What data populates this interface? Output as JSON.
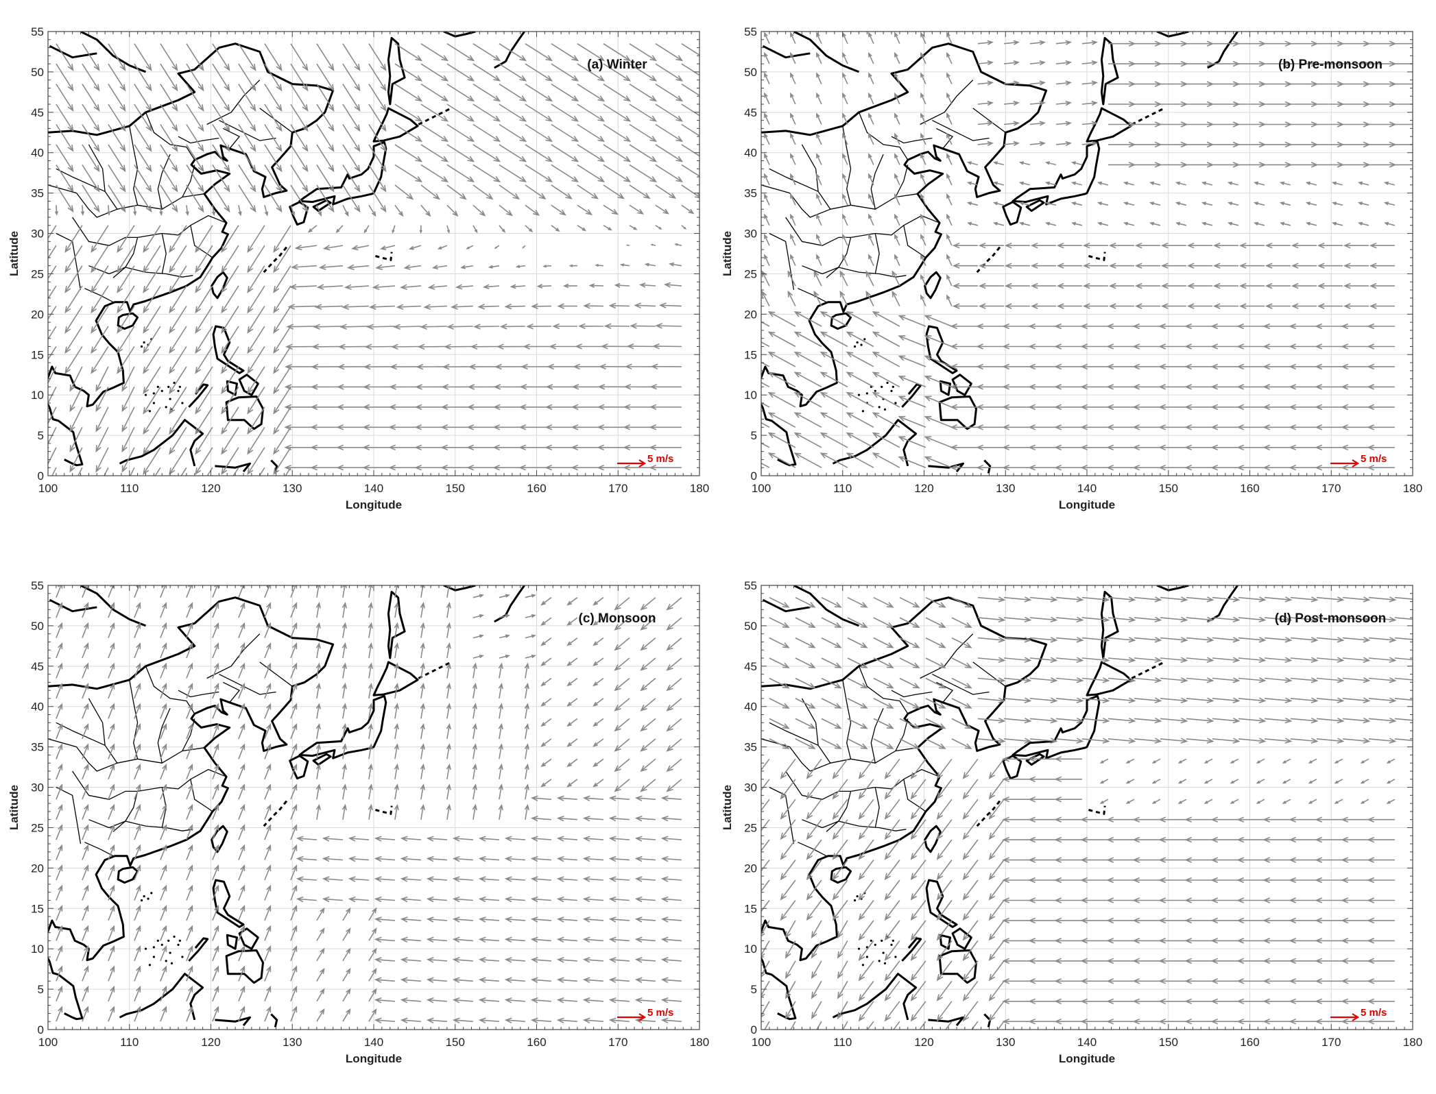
{
  "figure": {
    "panels": [
      {
        "id": "a",
        "title": "(a) Winter",
        "season": "winter",
        "xlabel": "Longitude",
        "ylabel": "Latitude",
        "xticks": [
          "100",
          "110",
          "120",
          "130",
          "140",
          "150",
          "160",
          "170",
          "180"
        ],
        "yticks": [
          "0",
          "5",
          "10",
          "15",
          "20",
          "25",
          "30",
          "35",
          "40",
          "45",
          "50",
          "55"
        ],
        "reference_vector": "5 m/s"
      },
      {
        "id": "b",
        "title": "(b) Pre-monsoon",
        "season": "premonsoon",
        "xlabel": "Longitude",
        "ylabel": "Latitude",
        "xticks": [
          "100",
          "110",
          "120",
          "130",
          "140",
          "150",
          "160",
          "170",
          "180"
        ],
        "yticks": [
          "0",
          "5",
          "10",
          "15",
          "20",
          "25",
          "30",
          "35",
          "40",
          "45",
          "50",
          "55"
        ],
        "reference_vector": "5 m/s"
      },
      {
        "id": "c",
        "title": "(c) Monsoon",
        "season": "monsoon",
        "xlabel": "Longitude",
        "ylabel": "Latitude",
        "xticks": [
          "100",
          "110",
          "120",
          "130",
          "140",
          "150",
          "160",
          "170",
          "180"
        ],
        "yticks": [
          "0",
          "5",
          "10",
          "15",
          "20",
          "25",
          "30",
          "35",
          "40",
          "45",
          "50",
          "55"
        ],
        "reference_vector": "5 m/s"
      },
      {
        "id": "d",
        "title": "(d) Post-monsoon",
        "season": "postmonsoon",
        "xlabel": "Longitude",
        "ylabel": "Latitude",
        "xticks": [
          "100",
          "110",
          "120",
          "130",
          "140",
          "150",
          "160",
          "170",
          "180"
        ],
        "yticks": [
          "0",
          "5",
          "10",
          "15",
          "20",
          "25",
          "30",
          "35",
          "40",
          "45",
          "50",
          "55"
        ],
        "reference_vector": "5 m/s"
      }
    ],
    "map_extent": {
      "lon": [
        100,
        180
      ],
      "lat": [
        0,
        55
      ]
    },
    "colors": {
      "vector": "#8a8a8a",
      "reference_vector": "#e00000",
      "coastline": "#000000",
      "grid": "#d9d9d9"
    }
  }
}
